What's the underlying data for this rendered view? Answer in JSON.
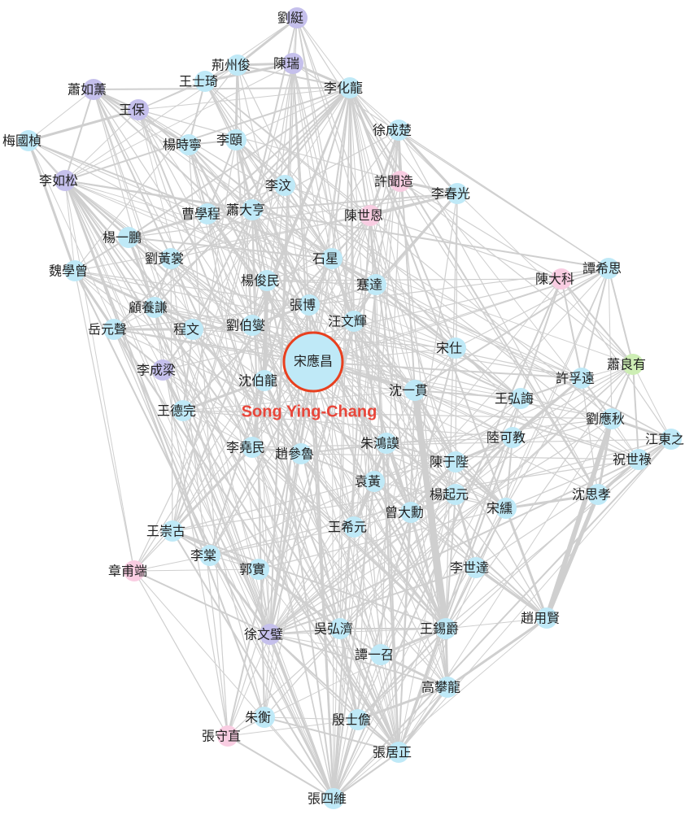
{
  "title": null,
  "annotation": "Song Ying-Chang",
  "nodes": [
    {
      "label": "劉綎",
      "color": "#c5c0ec"
    },
    {
      "label": "荊州俊",
      "color": "#bfe9f7"
    },
    {
      "label": "陳瑞",
      "color": "#c5c0ec"
    },
    {
      "label": "王士琦",
      "color": "#bfe9f7"
    },
    {
      "label": "蕭如薰",
      "color": "#c5c0ec"
    },
    {
      "label": "王保",
      "color": "#c5c0ec"
    },
    {
      "label": "李化龍",
      "color": "#bfe9f7"
    },
    {
      "label": "徐成楚",
      "color": "#bfe9f7"
    },
    {
      "label": "梅國楨",
      "color": "#bfe9f7"
    },
    {
      "label": "楊時寧",
      "color": "#bfe9f7"
    },
    {
      "label": "李頤",
      "color": "#bfe9f7"
    },
    {
      "label": "李如松",
      "color": "#c5c0ec"
    },
    {
      "label": "李汶",
      "color": "#bfe9f7"
    },
    {
      "label": "許聞造",
      "color": "#f9cde2"
    },
    {
      "label": "李春光",
      "color": "#bfe9f7"
    },
    {
      "label": "曹學程",
      "color": "#bfe9f7"
    },
    {
      "label": "蕭大亨",
      "color": "#bfe9f7"
    },
    {
      "label": "陳世恩",
      "color": "#f9cde2"
    },
    {
      "label": "楊一鵬",
      "color": "#bfe9f7"
    },
    {
      "label": "劉黃裳",
      "color": "#bfe9f7"
    },
    {
      "label": "石星",
      "color": "#bfe9f7"
    },
    {
      "label": "魏學曾",
      "color": "#bfe9f7"
    },
    {
      "label": "楊俊民",
      "color": "#bfe9f7"
    },
    {
      "label": "蹇達",
      "color": "#bfe9f7"
    },
    {
      "label": "陳大科",
      "color": "#f9cde2"
    },
    {
      "label": "譚希思",
      "color": "#bfe9f7"
    },
    {
      "label": "顧養謙",
      "color": "#bfe9f7"
    },
    {
      "label": "張博",
      "color": "#bfe9f7"
    },
    {
      "label": "岳元聲",
      "color": "#bfe9f7"
    },
    {
      "label": "程文",
      "color": "#bfe9f7"
    },
    {
      "label": "劉伯燮",
      "color": "#bfe9f7"
    },
    {
      "label": "汪文輝",
      "color": "#bfe9f7"
    },
    {
      "label": "宋仕",
      "color": "#bfe9f7"
    },
    {
      "label": "宋應昌",
      "color": "#bfe9f7"
    },
    {
      "label": "李成梁",
      "color": "#c5c0ec"
    },
    {
      "label": "沈伯龍",
      "color": "#bfe9f7"
    },
    {
      "label": "沈一貫",
      "color": "#bfe9f7"
    },
    {
      "label": "許孚遠",
      "color": "#bfe9f7"
    },
    {
      "label": "蕭良有",
      "color": "#cdeeb4"
    },
    {
      "label": "王德完",
      "color": "#bfe9f7"
    },
    {
      "label": "王弘誨",
      "color": "#bfe9f7"
    },
    {
      "label": "劉應秋",
      "color": "#bfe9f7"
    },
    {
      "label": "江東之",
      "color": "#bfe9f7"
    },
    {
      "label": "陸可教",
      "color": "#bfe9f7"
    },
    {
      "label": "朱鴻謨",
      "color": "#bfe9f7"
    },
    {
      "label": "李堯民",
      "color": "#bfe9f7"
    },
    {
      "label": "趙參魯",
      "color": "#bfe9f7"
    },
    {
      "label": "祝世祿",
      "color": "#bfe9f7"
    },
    {
      "label": "陳于陛",
      "color": "#bfe9f7"
    },
    {
      "label": "袁黃",
      "color": "#bfe9f7"
    },
    {
      "label": "楊起元",
      "color": "#bfe9f7"
    },
    {
      "label": "沈思孝",
      "color": "#bfe9f7"
    },
    {
      "label": "宋纁",
      "color": "#bfe9f7"
    },
    {
      "label": "曾大勳",
      "color": "#bfe9f7"
    },
    {
      "label": "王崇古",
      "color": "#bfe9f7"
    },
    {
      "label": "王希元",
      "color": "#bfe9f7"
    },
    {
      "label": "李棠",
      "color": "#bfe9f7"
    },
    {
      "label": "章甫端",
      "color": "#f9cde2"
    },
    {
      "label": "郭實",
      "color": "#bfe9f7"
    },
    {
      "label": "李世達",
      "color": "#bfe9f7"
    },
    {
      "label": "趙用賢",
      "color": "#bfe9f7"
    },
    {
      "label": "吳弘濟",
      "color": "#bfe9f7"
    },
    {
      "label": "王錫爵",
      "color": "#bfe9f7"
    },
    {
      "label": "徐文璧",
      "color": "#c5c0ec"
    },
    {
      "label": "譚一召",
      "color": "#bfe9f7"
    },
    {
      "label": "高攀龍",
      "color": "#bfe9f7"
    },
    {
      "label": "朱衡",
      "color": "#bfe9f7"
    },
    {
      "label": "殷士儋",
      "color": "#bfe9f7"
    },
    {
      "label": "張守直",
      "color": "#f9cde2"
    },
    {
      "label": "張居正",
      "color": "#bfe9f7"
    },
    {
      "label": "張四維",
      "color": "#bfe9f7"
    }
  ]
}
